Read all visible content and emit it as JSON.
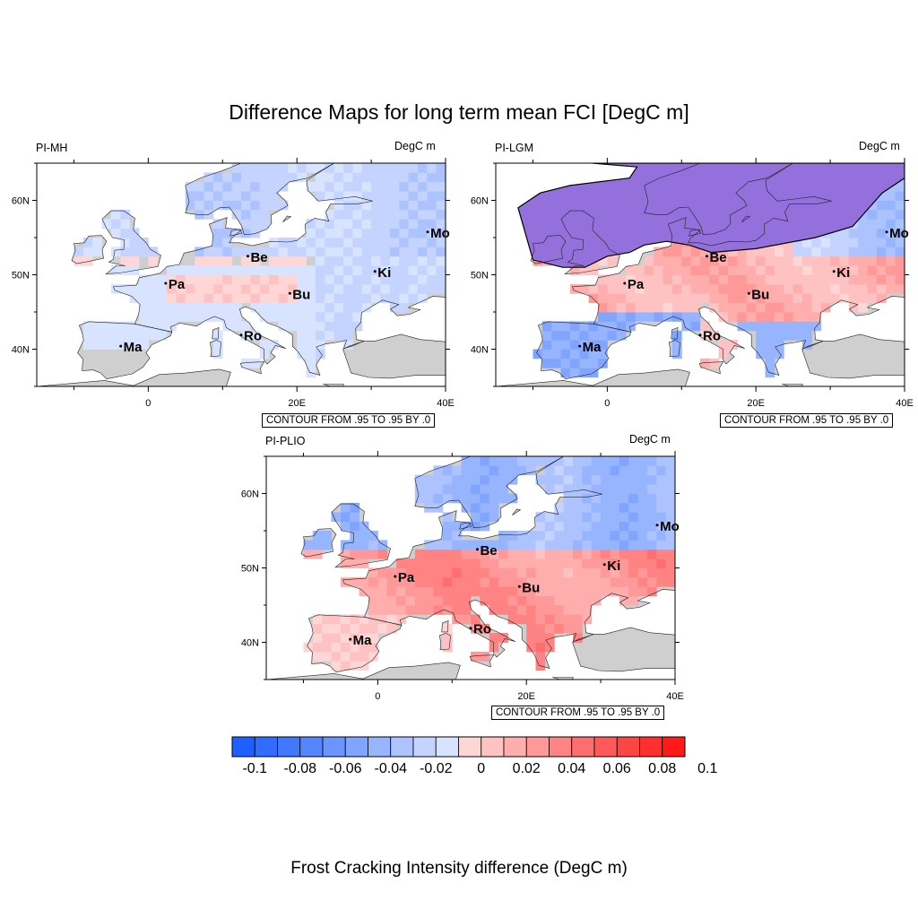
{
  "title": "Difference Maps for long term mean FCI [DegC m]",
  "footer": "Frost Cracking Intensity difference (DegC m)",
  "units": "DegC m",
  "contour_text": "CONTOUR FROM .95 TO .95 BY .0",
  "lat_ticks": [
    "40N",
    "50N",
    "60N"
  ],
  "lon_ticks": [
    "0",
    "20E",
    "40E"
  ],
  "panels": [
    {
      "name": "PI-MH",
      "cities": [
        {
          "code": "Mo",
          "lon": 37.6,
          "lat": 55.75
        },
        {
          "code": "Be",
          "lon": 13.4,
          "lat": 52.5
        },
        {
          "code": "Ki",
          "lon": 30.5,
          "lat": 50.45
        },
        {
          "code": "Pa",
          "lon": 2.35,
          "lat": 48.85
        },
        {
          "code": "Bu",
          "lon": 19.05,
          "lat": 47.5
        },
        {
          "code": "Ro",
          "lon": 12.5,
          "lat": 41.9
        },
        {
          "code": "Ma",
          "lon": -3.7,
          "lat": 40.4
        }
      ]
    },
    {
      "name": "PI-LGM",
      "cities": [
        {
          "code": "Mo",
          "lon": 37.6,
          "lat": 55.75
        },
        {
          "code": "Be",
          "lon": 13.4,
          "lat": 52.5
        },
        {
          "code": "Ki",
          "lon": 30.5,
          "lat": 50.45
        },
        {
          "code": "Pa",
          "lon": 2.35,
          "lat": 48.85
        },
        {
          "code": "Bu",
          "lon": 19.05,
          "lat": 47.5
        },
        {
          "code": "Ro",
          "lon": 12.5,
          "lat": 41.9
        },
        {
          "code": "Ma",
          "lon": -3.7,
          "lat": 40.4
        }
      ]
    },
    {
      "name": "PI-PLIO",
      "cities": [
        {
          "code": "Mo",
          "lon": 37.6,
          "lat": 55.75
        },
        {
          "code": "Be",
          "lon": 13.4,
          "lat": 52.5
        },
        {
          "code": "Ki",
          "lon": 30.5,
          "lat": 50.45
        },
        {
          "code": "Pa",
          "lon": 2.35,
          "lat": 48.85
        },
        {
          "code": "Bu",
          "lon": 19.05,
          "lat": 47.5
        },
        {
          "code": "Ro",
          "lon": 12.5,
          "lat": 41.9
        },
        {
          "code": "Ma",
          "lon": -3.7,
          "lat": 40.4
        }
      ]
    }
  ],
  "colorbar": {
    "colors": [
      "#1f5fff",
      "#2f6cff",
      "#4079ff",
      "#5586ff",
      "#6a95ff",
      "#80a4ff",
      "#97b4ff",
      "#adc3ff",
      "#c4d3ff",
      "#d8e3ff",
      "#ffd6d6",
      "#ffc2c2",
      "#ffadad",
      "#ff9898",
      "#ff8383",
      "#ff6e6e",
      "#ff5959",
      "#ff4444",
      "#ff2f2f",
      "#ff1a1a"
    ],
    "labels": [
      "-0.1",
      "-0.08",
      "-0.06",
      "-0.04",
      "-0.02",
      "0",
      "0.02",
      "0.04",
      "0.06",
      "0.08",
      "0.1"
    ]
  }
}
